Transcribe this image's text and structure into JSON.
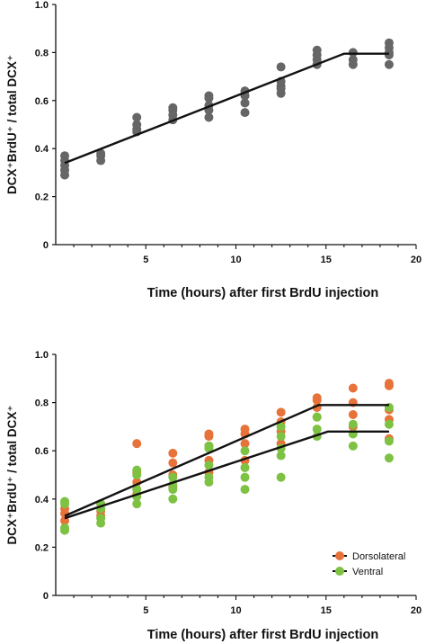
{
  "chart_data": [
    {
      "type": "scatter",
      "title": "",
      "xlabel": "Time (hours) after first BrdU injection",
      "ylabel": "DCX⁺BrdU⁺ / total DCX⁺",
      "xlim": [
        0,
        20
      ],
      "ylim": [
        0,
        1.0
      ],
      "xticks": [
        "5",
        "10",
        "15",
        "20"
      ],
      "yticks": [
        "0",
        "0.2",
        "0.4",
        "0.6",
        "0.8",
        "1.0"
      ],
      "grid": false,
      "series": [
        {
          "name": "",
          "color": "#666666",
          "points": [
            [
              0.5,
              0.29
            ],
            [
              0.5,
              0.31
            ],
            [
              0.5,
              0.33
            ],
            [
              0.5,
              0.35
            ],
            [
              0.5,
              0.37
            ],
            [
              2.5,
              0.35
            ],
            [
              2.5,
              0.37
            ],
            [
              2.5,
              0.38
            ],
            [
              4.5,
              0.47
            ],
            [
              4.5,
              0.48
            ],
            [
              4.5,
              0.5
            ],
            [
              4.5,
              0.53
            ],
            [
              6.5,
              0.52
            ],
            [
              6.5,
              0.54
            ],
            [
              6.5,
              0.56
            ],
            [
              6.5,
              0.57
            ],
            [
              8.5,
              0.53
            ],
            [
              8.5,
              0.56
            ],
            [
              8.5,
              0.58
            ],
            [
              8.5,
              0.61
            ],
            [
              8.5,
              0.62
            ],
            [
              10.5,
              0.55
            ],
            [
              10.5,
              0.59
            ],
            [
              10.5,
              0.62
            ],
            [
              10.5,
              0.64
            ],
            [
              12.5,
              0.63
            ],
            [
              12.5,
              0.65
            ],
            [
              12.5,
              0.66
            ],
            [
              12.5,
              0.68
            ],
            [
              12.5,
              0.74
            ],
            [
              14.5,
              0.75
            ],
            [
              14.5,
              0.77
            ],
            [
              14.5,
              0.79
            ],
            [
              14.5,
              0.81
            ],
            [
              16.5,
              0.75
            ],
            [
              16.5,
              0.77
            ],
            [
              16.5,
              0.8
            ],
            [
              18.5,
              0.75
            ],
            [
              18.5,
              0.79
            ],
            [
              18.5,
              0.8
            ],
            [
              18.5,
              0.82
            ],
            [
              18.5,
              0.84
            ]
          ],
          "fit": [
            [
              0.5,
              0.34
            ],
            [
              16.0,
              0.795
            ],
            [
              18.5,
              0.795
            ]
          ]
        }
      ]
    },
    {
      "type": "scatter",
      "title": "",
      "xlabel": "Time (hours) after first BrdU injection",
      "ylabel": "DCX⁺BrdU⁺ / total DCX⁺",
      "xlim": [
        0,
        20
      ],
      "ylim": [
        0,
        1.0
      ],
      "xticks": [
        "5",
        "10",
        "15",
        "20"
      ],
      "yticks": [
        "0",
        "0.2",
        "0.4",
        "0.6",
        "0.8",
        "1.0"
      ],
      "grid": false,
      "legend": "bottom-right",
      "series": [
        {
          "name": "Dorsolateral",
          "color": "#E8733A",
          "points": [
            [
              0.5,
              0.31
            ],
            [
              0.5,
              0.34
            ],
            [
              0.5,
              0.36
            ],
            [
              2.5,
              0.33
            ],
            [
              2.5,
              0.35
            ],
            [
              2.5,
              0.38
            ],
            [
              4.5,
              0.42
            ],
            [
              4.5,
              0.47
            ],
            [
              4.5,
              0.51
            ],
            [
              4.5,
              0.63
            ],
            [
              6.5,
              0.45
            ],
            [
              6.5,
              0.5
            ],
            [
              6.5,
              0.55
            ],
            [
              6.5,
              0.59
            ],
            [
              8.5,
              0.51
            ],
            [
              8.5,
              0.56
            ],
            [
              8.5,
              0.62
            ],
            [
              8.5,
              0.66
            ],
            [
              8.5,
              0.67
            ],
            [
              10.5,
              0.56
            ],
            [
              10.5,
              0.63
            ],
            [
              10.5,
              0.67
            ],
            [
              10.5,
              0.69
            ],
            [
              12.5,
              0.63
            ],
            [
              12.5,
              0.68
            ],
            [
              12.5,
              0.72
            ],
            [
              12.5,
              0.76
            ],
            [
              14.5,
              0.74
            ],
            [
              14.5,
              0.78
            ],
            [
              14.5,
              0.81
            ],
            [
              14.5,
              0.82
            ],
            [
              16.5,
              0.7
            ],
            [
              16.5,
              0.75
            ],
            [
              16.5,
              0.8
            ],
            [
              16.5,
              0.86
            ],
            [
              18.5,
              0.65
            ],
            [
              18.5,
              0.73
            ],
            [
              18.5,
              0.77
            ],
            [
              18.5,
              0.87
            ],
            [
              18.5,
              0.88
            ]
          ],
          "fit": [
            [
              0.5,
              0.33
            ],
            [
              14.6,
              0.79
            ],
            [
              18.5,
              0.79
            ]
          ]
        },
        {
          "name": "Ventral",
          "color": "#7DC242",
          "points": [
            [
              0.5,
              0.27
            ],
            [
              0.5,
              0.28
            ],
            [
              0.5,
              0.38
            ],
            [
              0.5,
              0.39
            ],
            [
              2.5,
              0.3
            ],
            [
              2.5,
              0.32
            ],
            [
              2.5,
              0.36
            ],
            [
              2.5,
              0.38
            ],
            [
              4.5,
              0.38
            ],
            [
              4.5,
              0.41
            ],
            [
              4.5,
              0.44
            ],
            [
              4.5,
              0.5
            ],
            [
              4.5,
              0.52
            ],
            [
              6.5,
              0.4
            ],
            [
              6.5,
              0.44
            ],
            [
              6.5,
              0.46
            ],
            [
              6.5,
              0.49
            ],
            [
              8.5,
              0.47
            ],
            [
              8.5,
              0.49
            ],
            [
              8.5,
              0.54
            ],
            [
              8.5,
              0.61
            ],
            [
              8.5,
              0.62
            ],
            [
              10.5,
              0.44
            ],
            [
              10.5,
              0.49
            ],
            [
              10.5,
              0.53
            ],
            [
              10.5,
              0.6
            ],
            [
              12.5,
              0.49
            ],
            [
              12.5,
              0.58
            ],
            [
              12.5,
              0.61
            ],
            [
              12.5,
              0.66
            ],
            [
              12.5,
              0.7
            ],
            [
              14.5,
              0.66
            ],
            [
              14.5,
              0.69
            ],
            [
              14.5,
              0.74
            ],
            [
              16.5,
              0.62
            ],
            [
              16.5,
              0.67
            ],
            [
              16.5,
              0.71
            ],
            [
              18.5,
              0.57
            ],
            [
              18.5,
              0.64
            ],
            [
              18.5,
              0.71
            ],
            [
              18.5,
              0.78
            ]
          ],
          "fit": [
            [
              0.5,
              0.32
            ],
            [
              15.1,
              0.68
            ],
            [
              18.5,
              0.68
            ]
          ]
        }
      ]
    }
  ]
}
